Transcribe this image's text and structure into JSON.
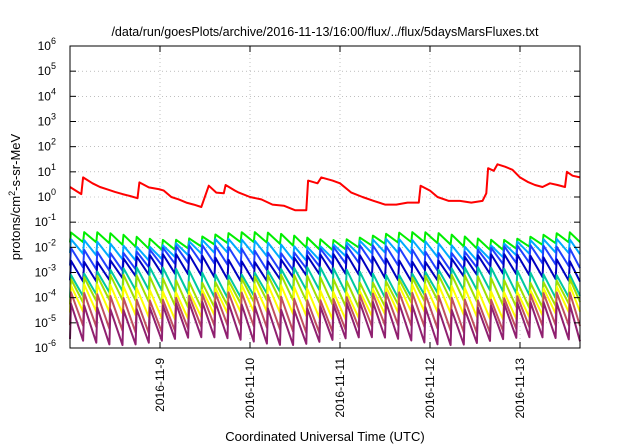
{
  "chart_data": {
    "type": "line",
    "title": "/data/run/goesPlots/archive/2016-11-13/16:00/flux/../flux/5daysMarsFluxes.txt",
    "xlabel": "Coordinated Universal Time (UTC)",
    "ylabel": {
      "prefix": "protons/cm",
      "superscript": "2",
      "suffix": "-s-sr-MeV"
    },
    "y_scale": "log",
    "ylim": [
      1e-06,
      1000000.0
    ],
    "y_ticks": [
      {
        "value": 1e-06,
        "base": "10",
        "exp": "-6"
      },
      {
        "value": 1e-05,
        "base": "10",
        "exp": "-5"
      },
      {
        "value": 0.0001,
        "base": "10",
        "exp": "-4"
      },
      {
        "value": 0.001,
        "base": "10",
        "exp": "-3"
      },
      {
        "value": 0.01,
        "base": "10",
        "exp": "-2"
      },
      {
        "value": 0.1,
        "base": "10",
        "exp": "-1"
      },
      {
        "value": 1.0,
        "base": "10",
        "exp": "0"
      },
      {
        "value": 10.0,
        "base": "10",
        "exp": "1"
      },
      {
        "value": 100.0,
        "base": "10",
        "exp": "2"
      },
      {
        "value": 1000.0,
        "base": "10",
        "exp": "3"
      },
      {
        "value": 10000.0,
        "base": "10",
        "exp": "4"
      },
      {
        "value": 100000.0,
        "base": "10",
        "exp": "5"
      },
      {
        "value": 1000000.0,
        "base": "10",
        "exp": "6"
      }
    ],
    "xlim": [
      "2016-11-08T00:00",
      "2016-11-13T16:00"
    ],
    "x_ticks": [
      {
        "value": "2016-11-09T00:00",
        "label": "2016-11-9"
      },
      {
        "value": "2016-11-10T00:00",
        "label": "2016-11-10"
      },
      {
        "value": "2016-11-11T00:00",
        "label": "2016-11-11"
      },
      {
        "value": "2016-11-12T00:00",
        "label": "2016-11-12"
      },
      {
        "value": "2016-11-13T00:00",
        "label": "2016-11-13"
      }
    ],
    "grid": true,
    "series": [
      {
        "color": "#ff0000",
        "x": [
          "2016-11-08T00:00",
          "2016-11-08T03:00",
          "2016-11-08T03:30",
          "2016-11-08T06:00",
          "2016-11-08T08:00",
          "2016-11-08T10:00",
          "2016-11-08T12:00",
          "2016-11-08T14:00",
          "2016-11-08T16:00",
          "2016-11-08T18:00",
          "2016-11-08T18:30",
          "2016-11-08T21:00",
          "2016-11-09T00:00",
          "2016-11-09T01:00",
          "2016-11-09T03:00",
          "2016-11-09T05:00",
          "2016-11-09T07:00",
          "2016-11-09T09:00",
          "2016-11-09T11:00",
          "2016-11-09T13:00",
          "2016-11-09T15:00",
          "2016-11-09T17:00",
          "2016-11-09T17:30",
          "2016-11-09T20:00",
          "2016-11-09T21:00",
          "2016-11-10T00:00",
          "2016-11-10T03:00",
          "2016-11-10T06:00",
          "2016-11-10T09:00",
          "2016-11-10T12:00",
          "2016-11-10T15:00",
          "2016-11-10T15:30",
          "2016-11-10T18:00",
          "2016-11-10T19:00",
          "2016-11-10T22:00",
          "2016-11-11T00:00",
          "2016-11-11T03:00",
          "2016-11-11T06:00",
          "2016-11-11T09:00",
          "2016-11-11T12:00",
          "2016-11-11T15:00",
          "2016-11-11T18:00",
          "2016-11-11T21:00",
          "2016-11-11T21:30",
          "2016-11-12T00:00",
          "2016-11-12T02:00",
          "2016-11-12T05:00",
          "2016-11-12T08:00",
          "2016-11-12T11:00",
          "2016-11-12T14:00",
          "2016-11-12T15:00",
          "2016-11-12T15:30",
          "2016-11-12T17:00",
          "2016-11-12T18:00",
          "2016-11-12T20:00",
          "2016-11-12T22:00",
          "2016-11-13T00:00",
          "2016-11-13T02:00",
          "2016-11-13T04:00",
          "2016-11-13T06:00",
          "2016-11-13T08:00",
          "2016-11-13T10:00",
          "2016-11-13T12:00",
          "2016-11-13T12:30",
          "2016-11-13T14:00",
          "2016-11-13T16:00"
        ],
        "values": [
          2.5,
          1.3,
          6,
          3.5,
          2.5,
          2,
          1.6,
          1.3,
          1.1,
          0.9,
          3.8,
          2.4,
          2.0,
          1.8,
          1.0,
          0.8,
          0.6,
          0.5,
          0.4,
          2.8,
          1.5,
          1.4,
          3.0,
          1.8,
          1.5,
          1.0,
          0.8,
          0.5,
          0.45,
          0.3,
          0.3,
          4.5,
          3.5,
          6,
          4.5,
          3.5,
          1.5,
          1.0,
          0.7,
          0.5,
          0.5,
          0.6,
          0.6,
          2.8,
          1.8,
          1.0,
          0.7,
          0.7,
          0.6,
          0.7,
          1.4,
          14,
          11,
          20,
          16,
          12,
          6,
          4,
          3,
          2.5,
          3.5,
          3,
          2.5,
          10,
          7,
          6
        ]
      },
      {
        "color": "#00ee00",
        "base": 0.03,
        "ratio": 2.5,
        "period_hours": 3.5
      },
      {
        "color": "#00aaff",
        "base": 0.016,
        "ratio": 3.5,
        "period_hours": 3.5
      },
      {
        "color": "#2040ff",
        "base": 0.009,
        "ratio": 5,
        "period_hours": 3.5
      },
      {
        "color": "#0000c0",
        "base": 0.004,
        "ratio": 6,
        "period_hours": 3.5
      },
      {
        "color": "#00c8a0",
        "base": 0.0012,
        "ratio": 8,
        "period_hours": 3.5
      },
      {
        "color": "#a0e000",
        "base": 0.0006,
        "ratio": 10,
        "period_hours": 3.5
      },
      {
        "color": "#ffff00",
        "base": 0.00025,
        "ratio": 12,
        "period_hours": 3.5
      },
      {
        "color": "#c05060",
        "base": 0.00012,
        "ratio": 20,
        "period_hours": 3.5
      },
      {
        "color": "#902070",
        "base": 5e-05,
        "ratio": 25,
        "period_hours": 3.5
      }
    ]
  }
}
